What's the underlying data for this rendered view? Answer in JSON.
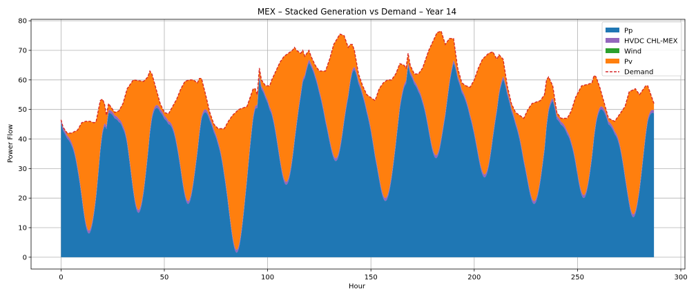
{
  "chart_data": {
    "type": "area",
    "title": "MEX – Stacked Generation vs Demand – Year 14",
    "xlabel": "Hour",
    "ylabel": "Power Flow",
    "xlim": [
      -14.5,
      302
    ],
    "ylim": [
      -4,
      80.5
    ],
    "xticks": [
      0,
      50,
      100,
      150,
      200,
      250,
      300
    ],
    "yticks": [
      0,
      10,
      20,
      30,
      40,
      50,
      60,
      70,
      80
    ],
    "grid": true,
    "legend_position": "top-right",
    "colors": {
      "Pp": "#1f77b4",
      "HVDC CHL-MEX": "#9467bd",
      "Wind": "#2ca02c",
      "Pv": "#ff7f0e",
      "Demand": "#d62728"
    },
    "legend": [
      "Pp",
      "HVDC CHL-MEX",
      "Wind",
      "Pv",
      "Demand"
    ],
    "demand_keypoints": [
      [
        0,
        46.5
      ],
      [
        1,
        44
      ],
      [
        3,
        42
      ],
      [
        5,
        42
      ],
      [
        8,
        43
      ],
      [
        10,
        45.5
      ],
      [
        12,
        46
      ],
      [
        14,
        46
      ],
      [
        16,
        45.5
      ],
      [
        17,
        46
      ],
      [
        19,
        53
      ],
      [
        20,
        53.5
      ],
      [
        21,
        52
      ],
      [
        22,
        48
      ],
      [
        23,
        52
      ],
      [
        24,
        51
      ],
      [
        26,
        49
      ],
      [
        28,
        49.5
      ],
      [
        30,
        52
      ],
      [
        32,
        57
      ],
      [
        35,
        60
      ],
      [
        40,
        59.5
      ],
      [
        42,
        61
      ],
      [
        43,
        63
      ],
      [
        44,
        62
      ],
      [
        46,
        57
      ],
      [
        48,
        52
      ],
      [
        50,
        49
      ],
      [
        52,
        48.5
      ],
      [
        54,
        51
      ],
      [
        56,
        53.5
      ],
      [
        58,
        57
      ],
      [
        60,
        59.5
      ],
      [
        62,
        60
      ],
      [
        64,
        60
      ],
      [
        66,
        59
      ],
      [
        67,
        60.5
      ],
      [
        68,
        60.5
      ],
      [
        70,
        55
      ],
      [
        72,
        49
      ],
      [
        74,
        45
      ],
      [
        76,
        43.5
      ],
      [
        79,
        43.5
      ],
      [
        81,
        46
      ],
      [
        83,
        48
      ],
      [
        86,
        50
      ],
      [
        90,
        51
      ],
      [
        93,
        57
      ],
      [
        94,
        57
      ],
      [
        95,
        55
      ],
      [
        96,
        64
      ],
      [
        97,
        60
      ],
      [
        99,
        58
      ],
      [
        101,
        58
      ],
      [
        102,
        60
      ],
      [
        104,
        63
      ],
      [
        106,
        66
      ],
      [
        108,
        68
      ],
      [
        110,
        69
      ],
      [
        112,
        70
      ],
      [
        113,
        71
      ],
      [
        114,
        70
      ],
      [
        116,
        69
      ],
      [
        117,
        70
      ],
      [
        118,
        68
      ],
      [
        119,
        69
      ],
      [
        120,
        70
      ],
      [
        121,
        68
      ],
      [
        123,
        65
      ],
      [
        125,
        63
      ],
      [
        127,
        63
      ],
      [
        128,
        63
      ],
      [
        130,
        67
      ],
      [
        132,
        72
      ],
      [
        135,
        75.5
      ],
      [
        137,
        75
      ],
      [
        139,
        71
      ],
      [
        140,
        72
      ],
      [
        141,
        72
      ],
      [
        142,
        70
      ],
      [
        144,
        62
      ],
      [
        146,
        58
      ],
      [
        148,
        55
      ],
      [
        150,
        54
      ],
      [
        152,
        53
      ],
      [
        154,
        57
      ],
      [
        156,
        59
      ],
      [
        158,
        60
      ],
      [
        160,
        60
      ],
      [
        162,
        62
      ],
      [
        164,
        65.5
      ],
      [
        166,
        65
      ],
      [
        167,
        64
      ],
      [
        168,
        69
      ],
      [
        169,
        65
      ],
      [
        171,
        62
      ],
      [
        173,
        62
      ],
      [
        175,
        64
      ],
      [
        178,
        70
      ],
      [
        180,
        73
      ],
      [
        182,
        76
      ],
      [
        184,
        76.5
      ],
      [
        186,
        72
      ],
      [
        188,
        74
      ],
      [
        190,
        74
      ],
      [
        192,
        64
      ],
      [
        194,
        59
      ],
      [
        196,
        58
      ],
      [
        198,
        57.5
      ],
      [
        200,
        60
      ],
      [
        202,
        64
      ],
      [
        204,
        67
      ],
      [
        207,
        69
      ],
      [
        209,
        69.5
      ],
      [
        211,
        67
      ],
      [
        212,
        68.5
      ],
      [
        214,
        67
      ],
      [
        216,
        58
      ],
      [
        218,
        52
      ],
      [
        220,
        49
      ],
      [
        222,
        48
      ],
      [
        224,
        47
      ],
      [
        226,
        50
      ],
      [
        228,
        52
      ],
      [
        232,
        53
      ],
      [
        234,
        55
      ],
      [
        235,
        60
      ],
      [
        236,
        61
      ],
      [
        238,
        58
      ],
      [
        240,
        49
      ],
      [
        242,
        47
      ],
      [
        245,
        47
      ],
      [
        247,
        49.5
      ],
      [
        249,
        54
      ],
      [
        252,
        58
      ],
      [
        255,
        58.5
      ],
      [
        257,
        59
      ],
      [
        258,
        61.5
      ],
      [
        259,
        61
      ],
      [
        261,
        57
      ],
      [
        263,
        52
      ],
      [
        265,
        47
      ],
      [
        268,
        46
      ],
      [
        270,
        48
      ],
      [
        273,
        51
      ],
      [
        275,
        56
      ],
      [
        278,
        57
      ],
      [
        280,
        55
      ],
      [
        283,
        58
      ],
      [
        284,
        58
      ],
      [
        286,
        54
      ],
      [
        287,
        52
      ]
    ],
    "pv_dips": [
      {
        "center": 13.5,
        "width": 5.5,
        "min": 9
      },
      {
        "center": 37.5,
        "width": 6.0,
        "min": 16
      },
      {
        "center": 61.5,
        "width": 6.0,
        "min": 19
      },
      {
        "center": 85.0,
        "width": 6.0,
        "min": 2.5
      },
      {
        "center": 109.0,
        "width": 6.5,
        "min": 25.5
      },
      {
        "center": 133.0,
        "width": 6.5,
        "min": 33.5
      },
      {
        "center": 157.0,
        "width": 6.5,
        "min": 20
      },
      {
        "center": 181.5,
        "width": 6.5,
        "min": 34.5
      },
      {
        "center": 205.0,
        "width": 6.5,
        "min": 28
      },
      {
        "center": 229.0,
        "width": 6.0,
        "min": 19
      },
      {
        "center": 253.0,
        "width": 6.0,
        "min": 21
      },
      {
        "center": 277.0,
        "width": 6.0,
        "min": 14.5
      }
    ],
    "hvdc_offset": 1.0,
    "wind_offset": 0.0,
    "hours": 288
  }
}
